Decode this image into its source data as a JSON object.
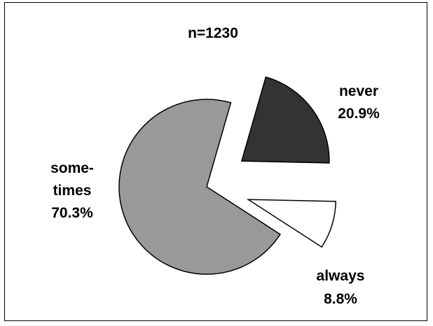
{
  "chart_data": {
    "type": "pie",
    "subtitle": "n=1230",
    "slices": [
      {
        "label": "never",
        "pct_label": "20.9%",
        "value": 20.9,
        "color": "#333333",
        "exploded": true
      },
      {
        "label": "always",
        "pct_label": "8.8%",
        "value": 8.8,
        "color": "#ffffff",
        "exploded": true
      },
      {
        "label": "some-times",
        "label_lines": [
          "some-",
          "times"
        ],
        "pct_label": "70.3%",
        "value": 70.3,
        "color": "#999999",
        "exploded": false
      }
    ],
    "legend": "none",
    "grid": false
  }
}
